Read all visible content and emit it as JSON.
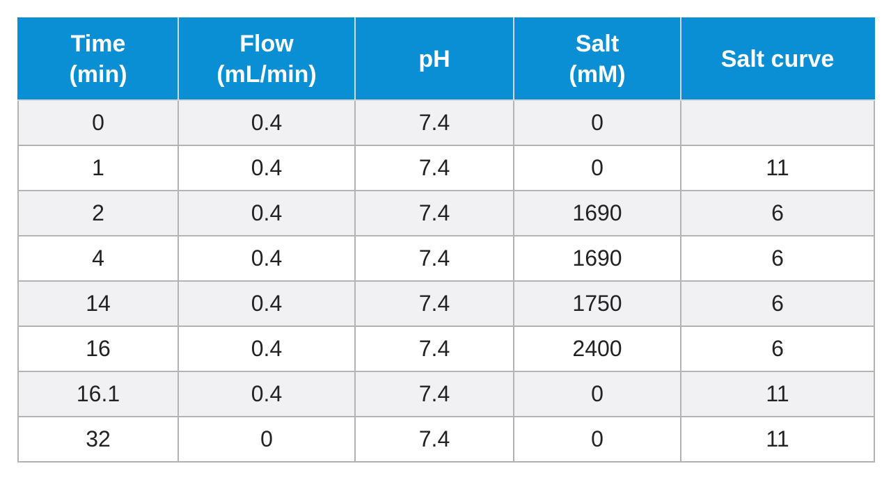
{
  "table": {
    "headers": [
      [
        "Time",
        "(min)"
      ],
      [
        "Flow",
        "(mL/min)"
      ],
      [
        "pH"
      ],
      [
        "Salt",
        "(mM)"
      ],
      [
        "Salt curve"
      ]
    ],
    "rows": [
      [
        0,
        0.4,
        7.4,
        0,
        null
      ],
      [
        1,
        0.4,
        7.4,
        0,
        11
      ],
      [
        2,
        0.4,
        7.4,
        1690,
        6
      ],
      [
        4,
        0.4,
        7.4,
        1690,
        6
      ],
      [
        14,
        0.4,
        7.4,
        1750,
        6
      ],
      [
        16,
        0.4,
        7.4,
        2400,
        6
      ],
      [
        16.1,
        0.4,
        7.4,
        0,
        11
      ],
      [
        32,
        0,
        7.4,
        0,
        11
      ]
    ]
  }
}
